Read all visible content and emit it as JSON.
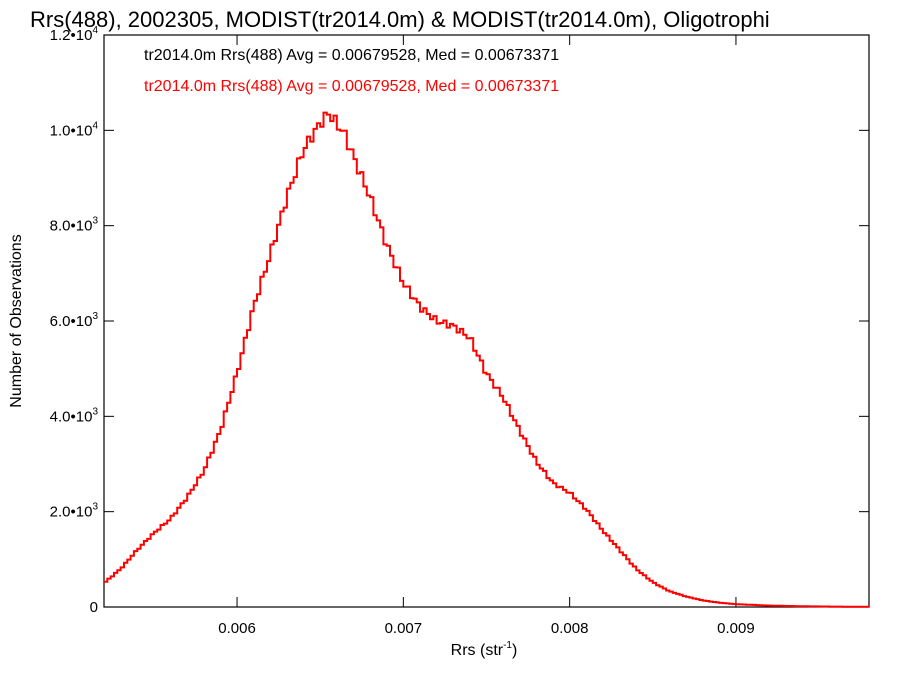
{
  "chart_data": {
    "type": "line",
    "title": "Rrs(488), 2002305, MODIST(tr2014.0m) & MODIST(tr2014.0m), Oligotrophi",
    "xlabel": "Rrs (str",
    "xlabel_sup": "-1",
    "xlabel_close": ")",
    "ylabel": "Number of Observations",
    "xlim": [
      0.0052,
      0.0098
    ],
    "ylim": [
      0,
      12000
    ],
    "grid": false,
    "x_ticks": [
      {
        "value": 0.006,
        "label": "0.006"
      },
      {
        "value": 0.007,
        "label": "0.007"
      },
      {
        "value": 0.008,
        "label": "0.008"
      },
      {
        "value": 0.009,
        "label": "0.009"
      }
    ],
    "y_ticks": [
      {
        "value": 0,
        "mant": "0",
        "exp": ""
      },
      {
        "value": 2000,
        "mant": "2.0•10",
        "exp": "3"
      },
      {
        "value": 4000,
        "mant": "4.0•10",
        "exp": "3"
      },
      {
        "value": 6000,
        "mant": "6.0•10",
        "exp": "3"
      },
      {
        "value": 8000,
        "mant": "8.0•10",
        "exp": "3"
      },
      {
        "value": 10000,
        "mant": "1.0•10",
        "exp": "4"
      },
      {
        "value": 12000,
        "mant": "1.2•10",
        "exp": "4"
      }
    ],
    "annotations": [
      {
        "text": "tr2014.0m Rrs(488) Avg = 0.00679528, Med = 0.00673371",
        "color": "#000000"
      },
      {
        "text": "tr2014.0m Rrs(488) Avg = 0.00679528, Med = 0.00673371",
        "color": "#ff0000"
      }
    ],
    "series": [
      {
        "color": "#ff0000",
        "x": [
          0.0052,
          0.0053,
          0.0054,
          0.0055,
          0.0056,
          0.0057,
          0.0058,
          0.0059,
          0.006,
          0.0061,
          0.0062,
          0.0063,
          0.0064,
          0.0065,
          0.00655,
          0.0066,
          0.00665,
          0.0067,
          0.0068,
          0.0069,
          0.007,
          0.0071,
          0.0072,
          0.0073,
          0.0074,
          0.0075,
          0.0076,
          0.0077,
          0.0078,
          0.0079,
          0.008,
          0.0081,
          0.0082,
          0.0083,
          0.0084,
          0.0085,
          0.0086,
          0.0087,
          0.0088,
          0.0089,
          0.009,
          0.0092,
          0.0094,
          0.0096,
          0.0098
        ],
        "y": [
          500,
          800,
          1200,
          1550,
          1850,
          2300,
          2850,
          3700,
          4900,
          6300,
          7400,
          8600,
          9600,
          10150,
          10350,
          10150,
          9900,
          9450,
          8600,
          7600,
          6800,
          6300,
          6000,
          5900,
          5650,
          4900,
          4400,
          3700,
          3050,
          2600,
          2400,
          2050,
          1600,
          1200,
          800,
          520,
          330,
          220,
          140,
          90,
          60,
          30,
          15,
          8,
          5
        ]
      }
    ]
  }
}
